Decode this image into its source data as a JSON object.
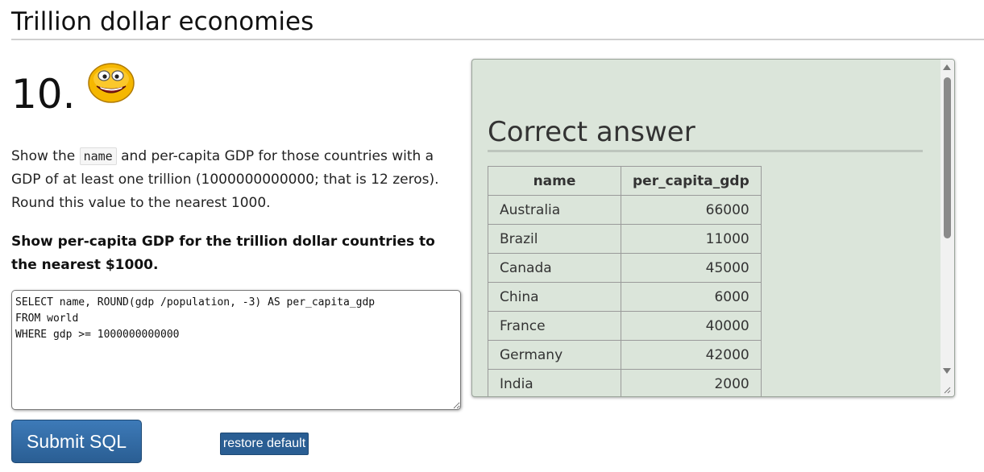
{
  "page": {
    "title": "Trillion dollar economies"
  },
  "question": {
    "number": "10.",
    "text_before": "Show the",
    "code": "name",
    "text_after": "and per-capita GDP for those countries with a GDP of at least one trillion (1000000000000; that is 12 zeros). Round this value to the nearest 1000.",
    "instruction": "Show per-capita GDP for the trillion dollar countries to the nearest $1000."
  },
  "editor": {
    "sql": "SELECT name, ROUND(gdp /population, -3) AS per_capita_gdp\nFROM world\nWHERE gdp >= 1000000000000"
  },
  "buttons": {
    "submit": "Submit SQL",
    "restore": "restore default"
  },
  "answer": {
    "title": "Correct answer",
    "columns": [
      "name",
      "per_capita_gdp"
    ],
    "rows": [
      [
        "Australia",
        "66000"
      ],
      [
        "Brazil",
        "11000"
      ],
      [
        "Canada",
        "45000"
      ],
      [
        "China",
        "6000"
      ],
      [
        "France",
        "40000"
      ],
      [
        "Germany",
        "42000"
      ],
      [
        "India",
        "2000"
      ]
    ]
  },
  "icons": {
    "smiley": "smiley-face-icon",
    "scroll_up": "scroll-up-icon",
    "scroll_down": "scroll-down-icon",
    "resize": "resize-grip-icon"
  },
  "colors": {
    "accent": "#2a5e93",
    "answer_bg": "#dbe5da",
    "smiley_face": "#f5b700"
  }
}
